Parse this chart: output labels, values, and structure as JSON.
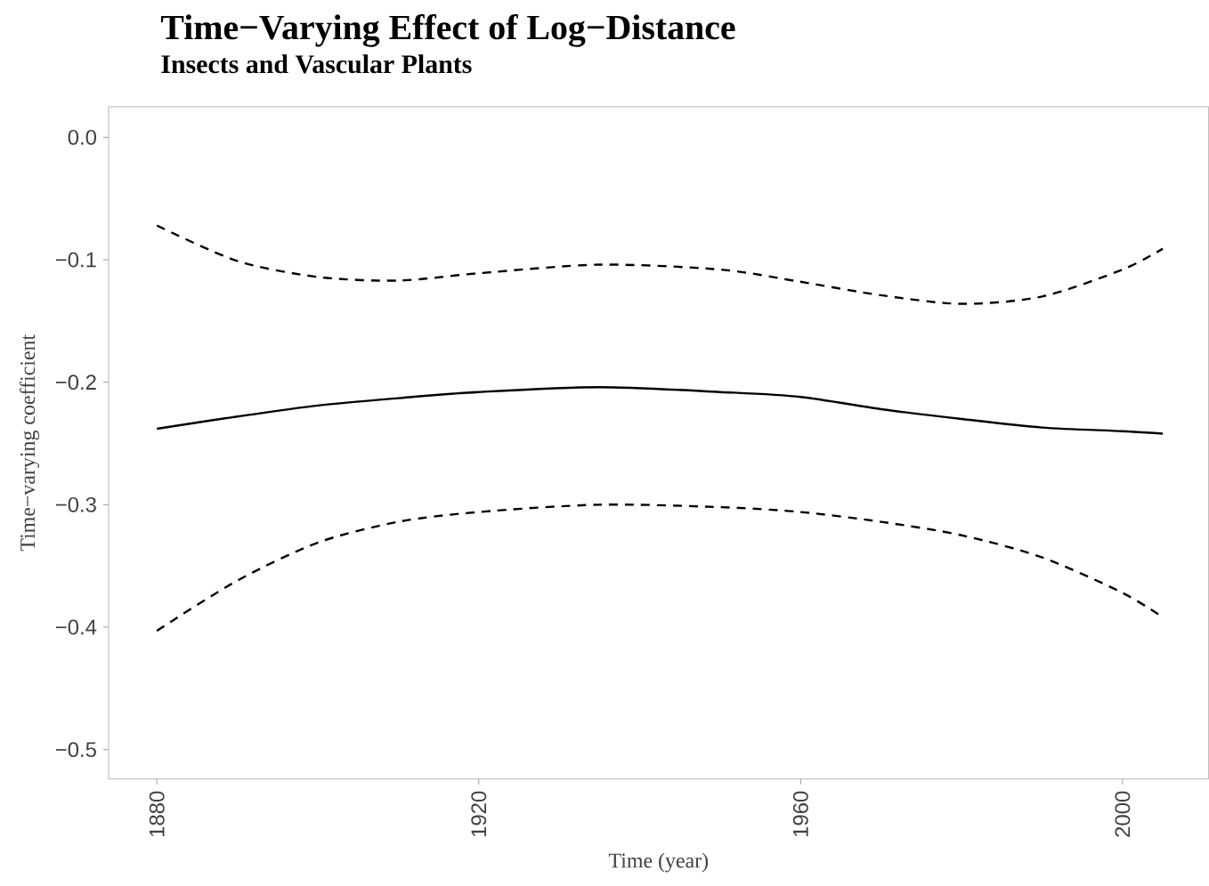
{
  "chart_data": {
    "type": "line",
    "title": "Time−Varying Effect of Log−Distance",
    "subtitle": "Insects and Vascular Plants",
    "xlabel": "Time (year)",
    "ylabel": "Time−varying coefficient",
    "x": [
      1880,
      1890,
      1900,
      1910,
      1920,
      1935,
      1950,
      1960,
      1970,
      1980,
      1990,
      2000,
      2005
    ],
    "series": [
      {
        "color": "#000000",
        "line_style": "solid",
        "values": [
          -0.238,
          -0.228,
          -0.219,
          -0.213,
          -0.208,
          -0.204,
          -0.208,
          -0.212,
          -0.222,
          -0.23,
          -0.237,
          -0.24,
          -0.242
        ]
      },
      {
        "color": "#000000",
        "line_style": "dashed",
        "values": [
          -0.072,
          -0.101,
          -0.114,
          -0.117,
          -0.111,
          -0.104,
          -0.108,
          -0.118,
          -0.129,
          -0.136,
          -0.13,
          -0.108,
          -0.091
        ]
      },
      {
        "color": "#000000",
        "line_style": "dashed",
        "values": [
          -0.403,
          -0.362,
          -0.331,
          -0.314,
          -0.306,
          -0.3,
          -0.302,
          -0.306,
          -0.314,
          -0.325,
          -0.343,
          -0.372,
          -0.392
        ]
      }
    ],
    "xlim": [
      1874,
      2010.7
    ],
    "ylim": [
      -0.524,
      0.025
    ],
    "xticks": [
      1880,
      1920,
      1960,
      2000
    ],
    "yticks": [
      {
        "value": 0.0,
        "label": "0.0"
      },
      {
        "value": -0.1,
        "label": "−0.1"
      },
      {
        "value": -0.2,
        "label": "−0.2"
      },
      {
        "value": -0.3,
        "label": "−0.3"
      },
      {
        "value": -0.4,
        "label": "−0.4"
      },
      {
        "value": -0.5,
        "label": "−0.5"
      }
    ],
    "marker": "none"
  }
}
